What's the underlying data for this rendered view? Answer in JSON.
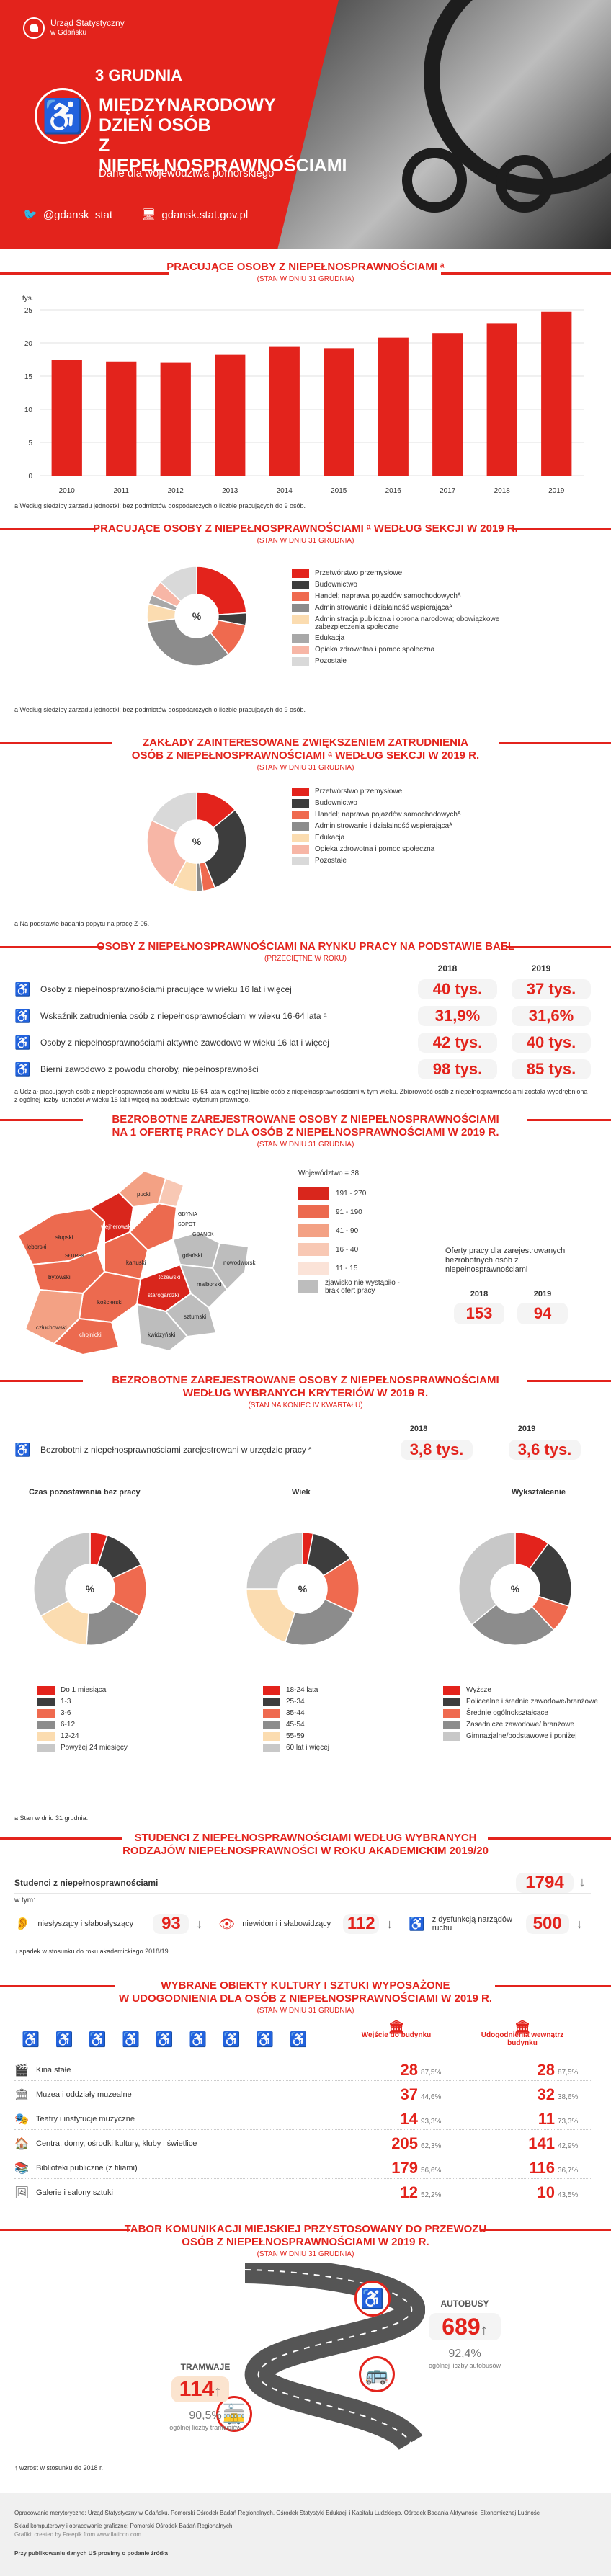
{
  "header": {
    "office_name_line1": "Urząd Statystyczny",
    "office_name_line2": "w Gdańsku",
    "date": "3 GRUDNIA",
    "title_line1": "MIĘDZYNARODOWY",
    "title_line2": "DZIEŃ OSÓB",
    "title_line3": "Z NIEPEŁNOSPRAWNOŚCIAMI",
    "subtitle": "Dane dla województwa pomorskiego",
    "twitter": "@gdansk_stat",
    "website": "gdansk.stat.gov.pl"
  },
  "section1": {
    "title": "PRACUJĄCE OSOBY Z NIEPEŁNOSPRAWNOŚCIAMI ᵃ",
    "note": "(STAN W DNIU 31 GRUDNIA)",
    "footnote": "a Według siedziby zarządu jednostki; bez podmiotów gospodarczych o liczbie pracujących do 9 osób."
  },
  "chart_data": [
    {
      "type": "bar",
      "ylabel": "tys.",
      "categories": [
        "2010",
        "2011",
        "2012",
        "2013",
        "2014",
        "2015",
        "2016",
        "2017",
        "2018",
        "2019"
      ],
      "values": [
        17.5,
        17.2,
        17.0,
        18.3,
        19.5,
        19.2,
        20.8,
        21.5,
        23.0,
        24.7
      ],
      "ylim": [
        0,
        25
      ],
      "yticks": [
        "0",
        "5",
        "10",
        "15",
        "20",
        "25"
      ]
    },
    {
      "type": "pie",
      "title": "PRACUJĄCE OSOBY Z NIEPEŁNOSPRAWNOŚCIAMI ᵃ WEDŁUG SEKCJI W 2019 R.",
      "categories": [
        "Przetwórstwo przemysłowe",
        "Budownictwo",
        "Handel; naprawa pojazdów samochodowychᴬ",
        "Administrowanie i działalność wspierającaᴬ",
        "Administracja publiczna i obrona narodowa; obowiązkowe zabezpieczenia społeczne",
        "Edukacja",
        "Opieka zdrowotna i pomoc społeczna",
        "Pozostałe"
      ],
      "values": [
        24,
        4,
        11,
        34,
        6,
        3,
        5,
        13
      ]
    },
    {
      "type": "pie",
      "title": "ZAKŁADY ZAINTERESOWANE ZWIĘKSZENIEM ZATRUDNIENIA OSÓB Z NIEPEŁNOSPRAWNOŚCIAMI ᵃ WEDŁUG SEKCJI W 2019 R.",
      "categories": [
        "Przetwórstwo przemysłowe",
        "Budownictwo",
        "Handel; naprawa pojazdów samochodowychᴬ",
        "Administrowanie i działalność wspierającaᴬ",
        "Edukacja",
        "Opieka zdrowotna i pomoc społeczna",
        "Pozostałe"
      ],
      "values": [
        14,
        30,
        4,
        2,
        8,
        24,
        18
      ]
    },
    {
      "type": "pie",
      "title": "Czas pozostawania bez pracy",
      "categories": [
        "Do 1 miesiąca",
        "1-3",
        "3-6",
        "6-12",
        "12-24",
        "Powyżej 24 miesięcy"
      ],
      "values": [
        5,
        13,
        15,
        18,
        16,
        33
      ]
    },
    {
      "type": "pie",
      "title": "Wiek",
      "categories": [
        "18-24 lata",
        "25-34",
        "35-44",
        "45-54",
        "55-59",
        "60 lat i więcej"
      ],
      "values": [
        3,
        13,
        16,
        23,
        20,
        25
      ]
    },
    {
      "type": "pie",
      "title": "Wykształcenie",
      "categories": [
        "Wyższe",
        "Policealne i średnie zawodowe/branżowe",
        "Średnie ogólnokształcące",
        "Zasadnicze zawodowe/ branżowe",
        "Gimnazjalne/podstawowe i poniżej"
      ],
      "values": [
        10,
        20,
        8,
        26,
        36
      ]
    }
  ],
  "section2": {
    "title": "PRACUJĄCE OSOBY Z NIEPEŁNOSPRAWNOŚCIAMI ᵃ WEDŁUG SEKCJI W 2019 R.",
    "note": "(STAN W DNIU 31 GRUDNIA)",
    "center": "%",
    "footnote": "a Według siedziby zarządu jednostki; bez podmiotów gospodarczych o liczbie pracujących do 9 osób.",
    "legend": [
      "Przetwórstwo przemysłowe",
      "Budownictwo",
      "Handel; naprawa pojazdów samochodowychᴬ",
      "Administrowanie i działalność wspierającaᴬ",
      "Administracja publiczna i obrona narodowa; obowiązkowe zabezpieczenia społeczne",
      "Edukacja",
      "Opieka zdrowotna i pomoc społeczna",
      "Pozostałe"
    ]
  },
  "section3": {
    "title_line1": "ZAKŁADY ZAINTERESOWANE ZWIĘKSZENIEM ZATRUDNIENIA",
    "title_line2": "OSÓB Z NIEPEŁNOSPRAWNOŚCIAMI ᵃ WEDŁUG SEKCJI W 2019 R.",
    "note": "(STAN W DNIU 31 GRUDNIA)",
    "center": "%",
    "footnote": "a Na podstawie badania popytu na pracę Z-05.",
    "legend": [
      "Przetwórstwo przemysłowe",
      "Budownictwo",
      "Handel; naprawa pojazdów samochodowychᴬ",
      "Administrowanie i działalność wspierającaᴬ",
      "Edukacja",
      "Opieka zdrowotna i pomoc społeczna",
      "Pozostałe"
    ]
  },
  "section4": {
    "title": "OSOBY Z NIEPEŁNOSPRAWNOŚCIAMI NA RYNKU PRACY NA PODSTAWIE BAEL",
    "note": "(PRZECIĘTNE W ROKU)",
    "year1": "2018",
    "year2": "2019",
    "rows": [
      {
        "label": "Osoby z niepełnosprawnościami pracujące w wieku 16 lat i więcej",
        "v2018": "40 tys.",
        "v2019": "37 tys."
      },
      {
        "label": "Wskaźnik zatrudnienia osób z niepełnosprawnościami w wieku 16-64 lata ᵃ",
        "v2018": "31,9%",
        "v2019": "31,6%"
      },
      {
        "label": "Osoby z niepełnosprawnościami aktywne zawodowo w wieku 16 lat i więcej",
        "v2018": "42 tys.",
        "v2019": "40 tys."
      },
      {
        "label": "Bierni zawodowo z powodu choroby, niepełnosprawności",
        "v2018": "98 tys.",
        "v2019": "85 tys."
      }
    ],
    "footnote": "a Udział pracujących osób z niepełnosprawnościami w wieku 16-64 lata w ogólnej liczbie osób z niepełnosprawnościami w tym wieku. Zbiorowość osób z niepełnosprawnościami została wyodrębniona z ogólnej liczby ludności w wieku 15 lat i więcej na podstawie kryterium prawnego."
  },
  "section5": {
    "title_line1": "BEZROBOTNE ZAREJESTROWANE OSOBY Z NIEPEŁNOSPRAWNOŚCIAMI",
    "title_line2": "NA 1 OFERTĘ PRACY DLA OSÓB Z NIEPEŁNOSPRAWNOŚCIAMI W 2019 R.",
    "note": "(STAN W DNIU 31 GRUDNIA)",
    "legend_title": "Województwo = 38",
    "legend": [
      "191 - 270",
      "91 - 190",
      "41 - 90",
      "16 - 40",
      "11 - 15",
      "zjawisko nie wystąpiło - brak ofert pracy"
    ],
    "legend_colors": [
      "#d9261c",
      "#ec6a4f",
      "#f3a184",
      "#f8c8b4",
      "#fbe3d8",
      "#bdbdbd"
    ],
    "offers_label": "Oferty pracy dla zarejestrowanych bezrobotnych osób z niepełnosprawnościami",
    "year1": "2018",
    "year2": "2019",
    "offers2018": "153",
    "offers2019": "94",
    "districts": [
      "pucki",
      "wejherowski",
      "lęborski",
      "słupski",
      "kartuski",
      "bytowski",
      "kościerski",
      "człuchowski",
      "chojnicki",
      "starogardzki",
      "malborski",
      "sztumski",
      "kwidzyński",
      "tczewski",
      "gdański",
      "nowodworski",
      "GDYNIA",
      "SOPOT",
      "GDAŃSK",
      "SŁUPSK"
    ]
  },
  "section6": {
    "title_line1": "BEZROBOTNE ZAREJESTROWANE OSOBY Z NIEPEŁNOSPRAWNOŚCIAMI",
    "title_line2": "WEDŁUG WYBRANYCH KRYTERIÓW W 2019 R.",
    "note": "(STAN NA KONIEC IV KWARTAŁU)",
    "year1": "2018",
    "year2": "2019",
    "row_label": "Bezrobotni z niepełnosprawnościami zarejestrowani w urzędzie pracy ᵃ",
    "v2018": "3,8 tys.",
    "v2019": "3,6 tys.",
    "center": "%",
    "donut1_title": "Czas pozostawania bez pracy",
    "donut2_title": "Wiek",
    "donut3_title": "Wykształcenie",
    "legend1": [
      "Do 1 miesiąca",
      "1-3",
      "3-6",
      "6-12",
      "12-24",
      "Powyżej 24 miesięcy"
    ],
    "legend2": [
      "18-24 lata",
      "25-34",
      "35-44",
      "45-54",
      "55-59",
      "60 lat i więcej"
    ],
    "legend3": [
      "Wyższe",
      "Policealne i średnie zawodowe/branżowe",
      "Średnie ogólnokształcące",
      "Zasadnicze zawodowe/ branżowe",
      "Gimnazjalne/podstawowe i poniżej"
    ],
    "footnote": "a Stan w dniu 31 grudnia."
  },
  "section7": {
    "title_line1": "STUDENCI Z NIEPEŁNOSPRAWNOŚCIAMI WEDŁUG WYBRANYCH",
    "title_line2": "RODZAJÓW NIEPEŁNOSPRAWNOŚCI W ROKU AKADEMICKIM 2019/20",
    "students_label": "Studenci z niepełnosprawnościami",
    "students_value": "1794",
    "of_which": "w tym:",
    "hearing_label": "niesłyszący i słabosłyszący",
    "hearing_value": "93",
    "vision_label": "niewidomi i słabowidzący",
    "vision_value": "112",
    "motor_label": "z dysfunkcją narządów ruchu",
    "motor_value": "500",
    "footnote": "↓ spadek w stosunku do roku akademickiego 2018/19"
  },
  "section8": {
    "title_line1": "WYBRANE OBIEKTY KULTURY I SZTUKI WYPOSAŻONE",
    "title_line2": "W UDOGODNIENIA DLA OSÓB Z NIEPEŁNOSPRAWNOŚCIAMI W 2019 R.",
    "note": "(STAN W DNIU 31 GRUDNIA)",
    "col1": "Wejście do budynku",
    "col2": "Udogodnienia wewnątrz budynku",
    "rows": [
      {
        "label": "Kina stałe",
        "n1": "28",
        "p1": "87,5%",
        "n2": "28",
        "p2": "87,5%"
      },
      {
        "label": "Muzea i oddziały muzealne",
        "n1": "37",
        "p1": "44,6%",
        "n2": "32",
        "p2": "38,6%"
      },
      {
        "label": "Teatry i instytucje muzyczne",
        "n1": "14",
        "p1": "93,3%",
        "n2": "11",
        "p2": "73,3%"
      },
      {
        "label": "Centra, domy, ośrodki kultury, kluby i świetlice",
        "n1": "205",
        "p1": "62,3%",
        "n2": "141",
        "p2": "42,9%"
      },
      {
        "label": "Biblioteki publiczne (z filiami)",
        "n1": "179",
        "p1": "56,6%",
        "n2": "116",
        "p2": "36,7%"
      },
      {
        "label": "Galerie i salony sztuki",
        "n1": "12",
        "p1": "52,2%",
        "n2": "10",
        "p2": "43,5%"
      }
    ]
  },
  "section9": {
    "title_line1": "TABOR KOMUNIKACJI MIEJSKIEJ PRZYSTOSOWANY DO PRZEWOZU",
    "title_line2": "OSÓB Z NIEPEŁNOSPRAWNOŚCIAMI W 2019 R.",
    "note": "(STAN W DNIU 31 GRUDNIA)",
    "trams_label": "TRAMWAJE",
    "trams_value": "114",
    "trams_pct": "90,5%",
    "trams_pct_label": "ogólnej liczby tramwajów",
    "buses_label": "AUTOBUSY",
    "buses_value": "689",
    "buses_pct": "92,4%",
    "buses_pct_label": "ogólnej liczby autobusów",
    "footnote": "↑ wzrost w stosunku do 2018 r."
  },
  "footer": {
    "line1": "Opracowanie merytoryczne: Urząd Statystyczny w Gdańsku, Pomorski Ośrodek Badań Regionalnych, Ośrodek Statystyki Edukacji i Kapitału Ludzkiego, Ośrodek Badania Aktywności Ekonomicznej Ludności",
    "line2": "Skład komputerowy i opracowanie graficzne: Pomorski Ośrodek Badań Regionalnych",
    "line3": "Grafiki: created by Freepik from www.flaticon.com",
    "line4": "Przy publikowaniu danych US prosimy o podanie źródła"
  },
  "colors": {
    "accent": "#e3231c",
    "dark_gray": "#555555",
    "mid_gray": "#8c8c8c",
    "light_gray": "#c8c8c8",
    "coral": "#ef6a4f",
    "peach": "#fbdcb0",
    "pink": "#f7b6a6"
  }
}
